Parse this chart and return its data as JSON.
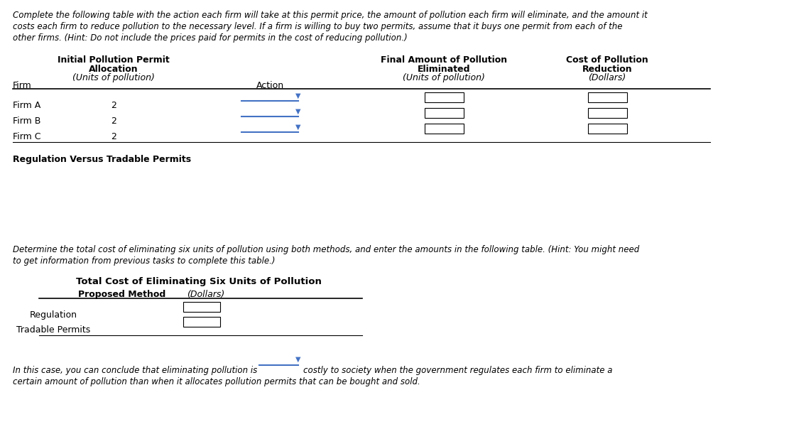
{
  "bg_color": "#ffffff",
  "intro_text_lines": [
    "Complete the following table with the action each firm will take at this permit price, the amount of pollution each firm will eliminate, and the amount it",
    "costs each firm to reduce pollution to the necessary level. If a firm is willing to buy two permits, assume that it buys one permit from each of the",
    "other firms. (Hint: Do not include the prices paid for permits in the cost of reducing pollution.)"
  ],
  "table1_col_headers": [
    [
      "Initial Pollution Permit",
      "Allocation",
      "(Units of pollution)"
    ],
    [
      "Action"
    ],
    [
      "Final Amount of Pollution",
      "Eliminated",
      "(Units of pollution)"
    ],
    [
      "Cost of Pollution",
      "Reduction",
      "(Dollars)"
    ]
  ],
  "table1_row_header": "Firm",
  "table1_firms": [
    "Firm A",
    "Firm B",
    "Firm C"
  ],
  "table1_allocations": [
    "2",
    "2",
    "2"
  ],
  "regulation_label": "Regulation Versus Tradable Permits",
  "determine_text_lines": [
    "Determine the total cost of eliminating six units of pollution using both methods, and enter the amounts in the following table. (Hint: You might need",
    "to get information from previous tasks to complete this table.)"
  ],
  "table2_title": "Total Cost of Eliminating Six Units of Pollution",
  "table2_col_header1": "Proposed Method",
  "table2_col_header2": "(Dollars)",
  "table2_rows": [
    "Regulation",
    "Tradable Permits"
  ],
  "conclude_text_lines": [
    "In this case, you can conclude that eliminating pollution is",
    "costly to society when the government regulates each firm to eliminate a",
    "certain amount of pollution than when it allocates pollution permits that can be bought and sold."
  ],
  "dropdown_color": "#4472c4",
  "line_color": "#4472c4",
  "text_color": "#000000",
  "header_fontsize": 9,
  "body_fontsize": 9,
  "italic_intro": true
}
